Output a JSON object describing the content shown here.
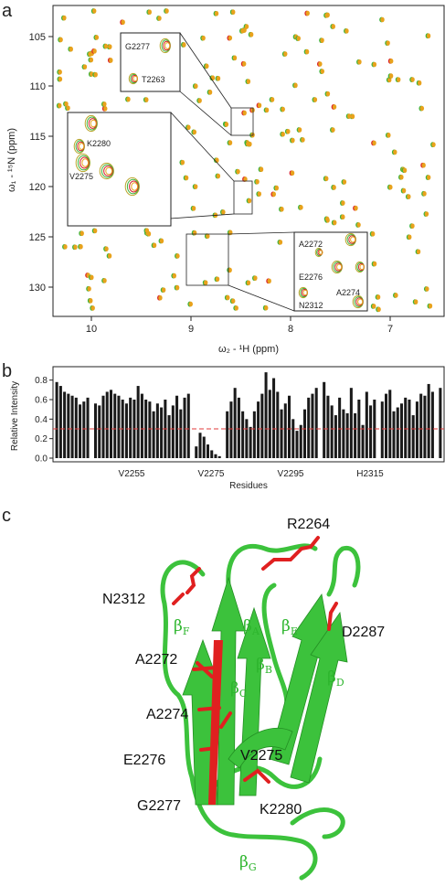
{
  "panel_a": {
    "letter": "a",
    "x_axis_label": "ω₂ - ¹H (ppm)",
    "y_axis_label": "ω₁ - ¹⁵N (ppm)",
    "x_ticks": [
      "10",
      "9",
      "8",
      "7"
    ],
    "y_ticks": [
      "105",
      "110",
      "115",
      "120",
      "125",
      "130"
    ],
    "inset_labels": [
      "G2277",
      "T2263",
      "K2280",
      "V2275",
      "A2272",
      "E2276",
      "N2312",
      "A2274"
    ]
  },
  "chart_data": [
    {
      "type": "bar",
      "panel": "b",
      "ylabel": "Relative Intensity",
      "xlabel": "Residues",
      "ylim": [
        0.0,
        0.9
      ],
      "y_ticks": [
        "0.0",
        "0.2",
        "0.4",
        "0.6",
        "0.8"
      ],
      "x_tick_labels": [
        "V2255",
        "V2275",
        "V2295",
        "H2315"
      ],
      "threshold": 0.3,
      "values": [
        0.78,
        0.74,
        0.68,
        0.66,
        0.64,
        0.62,
        0.55,
        0.58,
        0.62,
        0.0,
        0.56,
        0.54,
        0.64,
        0.68,
        0.7,
        0.66,
        0.64,
        0.6,
        0.56,
        0.62,
        0.6,
        0.74,
        0.66,
        0.6,
        0.58,
        0.48,
        0.56,
        0.52,
        0.6,
        0.44,
        0.54,
        0.64,
        0.5,
        0.62,
        0.66,
        0.0,
        0.12,
        0.26,
        0.22,
        0.14,
        0.08,
        0.04,
        0.02,
        0.0,
        0.48,
        0.58,
        0.72,
        0.62,
        0.48,
        0.4,
        0.32,
        0.48,
        0.58,
        0.66,
        0.88,
        0.7,
        0.82,
        0.68,
        0.5,
        0.56,
        0.64,
        0.4,
        0.28,
        0.34,
        0.5,
        0.62,
        0.66,
        0.72,
        0.0,
        0.78,
        0.64,
        0.54,
        0.44,
        0.62,
        0.5,
        0.46,
        0.72,
        0.46,
        0.6,
        0.34,
        0.68,
        0.54,
        0.6,
        0.0,
        0.58,
        0.66,
        0.7,
        0.48,
        0.52,
        0.56,
        0.62,
        0.6,
        0.44,
        0.58,
        0.66,
        0.64,
        0.76,
        0.68,
        0.0,
        0.72
      ]
    }
  ],
  "panel_b": {
    "letter": "b"
  },
  "panel_c": {
    "letter": "c",
    "residue_labels": [
      "R2264",
      "N2312",
      "D2287",
      "A2272",
      "A2274",
      "E2276",
      "V2275",
      "G2277",
      "K2280"
    ],
    "strand_letters": [
      "β",
      "β",
      "β",
      "β",
      "β",
      "β",
      "β"
    ],
    "strand_subs": [
      "F",
      "A",
      "E",
      "B",
      "C",
      "D",
      "G"
    ]
  },
  "colors": {
    "orange": "#e8a21c",
    "green": "#3cb43c",
    "red": "#d9232e",
    "olive": "#b9a52a"
  }
}
